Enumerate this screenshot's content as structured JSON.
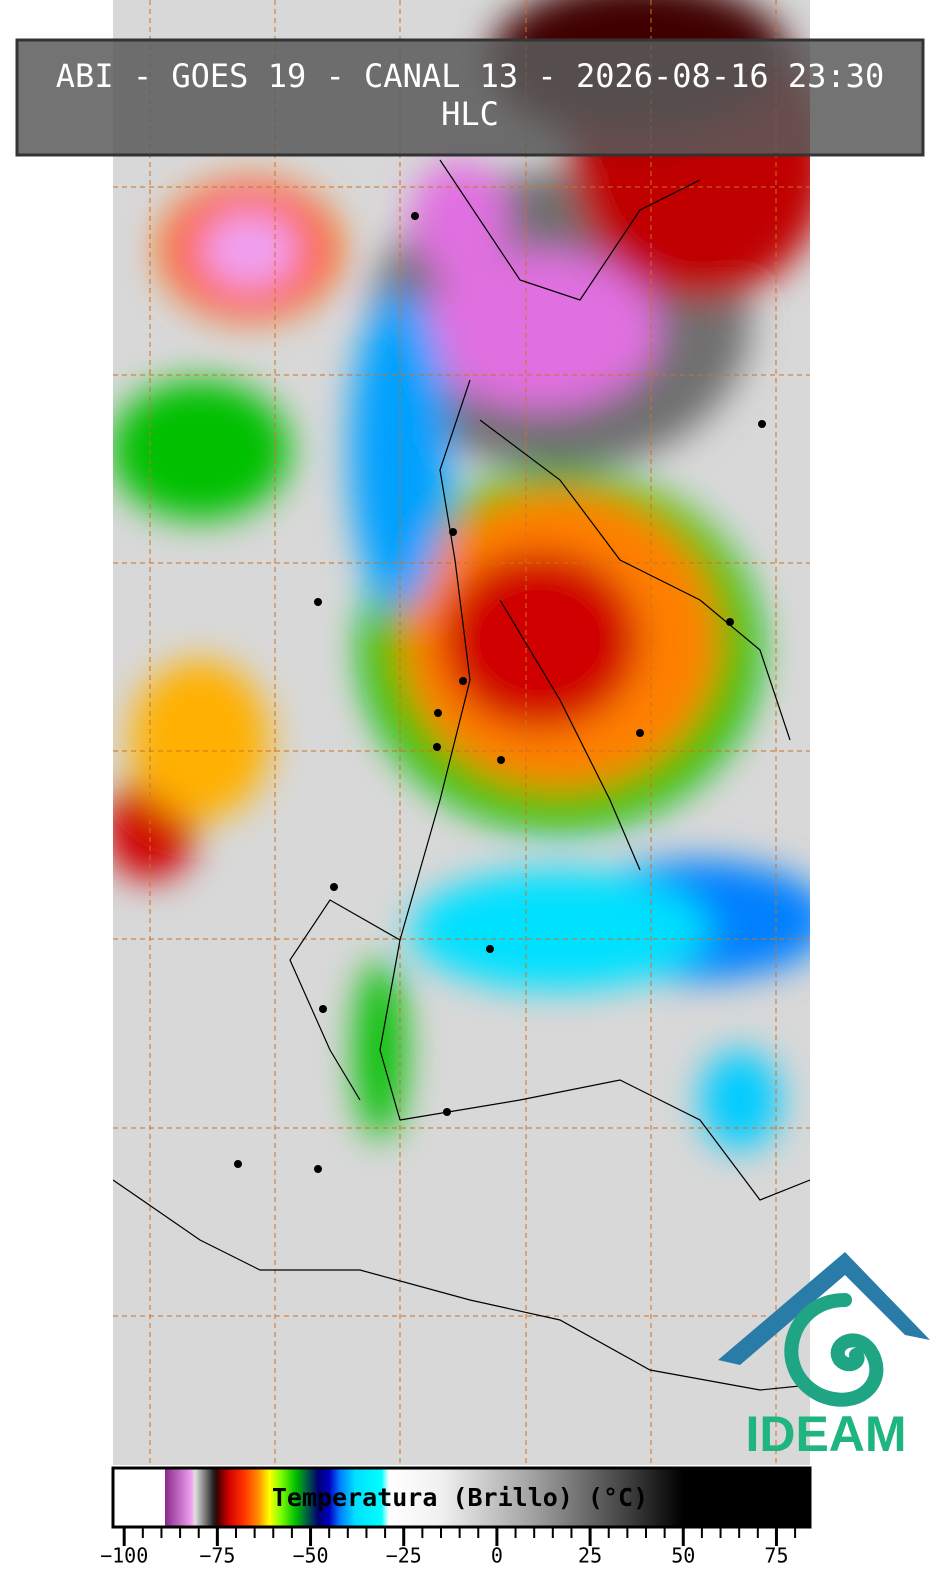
{
  "header": {
    "title": "ABI - GOES 19 - CANAL 13 - 2026-08-16 23:30",
    "subtitle": "HLC"
  },
  "colorbar": {
    "label": "Temperatura (Brillo) (°C)",
    "xlim": [
      -103,
      84
    ],
    "xticks": [
      {
        "value": -100,
        "label": "−100"
      },
      {
        "value": -75,
        "label": "−75"
      },
      {
        "value": -50,
        "label": "−50"
      },
      {
        "value": -25,
        "label": "−25"
      },
      0,
      25,
      50,
      75
    ],
    "minor_ticks": [
      -95,
      -90,
      -85,
      -80,
      -70,
      -65,
      -60,
      -55,
      -45,
      -40,
      -35,
      -30,
      -20,
      -15,
      -10,
      -5,
      5,
      10,
      15,
      20,
      30,
      35,
      40,
      45,
      55,
      60,
      65,
      70,
      80
    ],
    "stops": [
      {
        "value": -103,
        "color": "#ffffff"
      },
      {
        "value": -89,
        "color": "#ffffff"
      },
      {
        "value": -89,
        "color": "#8b2a8b"
      },
      {
        "value": -82,
        "color": "#f0a0f0"
      },
      {
        "value": -81,
        "color": "#e0e0e0"
      },
      {
        "value": -78,
        "color": "#707070"
      },
      {
        "value": -76,
        "color": "#202020"
      },
      {
        "value": -75,
        "color": "#400000"
      },
      {
        "value": -72,
        "color": "#d00000"
      },
      {
        "value": -68,
        "color": "#ff3000"
      },
      {
        "value": -64,
        "color": "#ff9000"
      },
      {
        "value": -61,
        "color": "#ffff00"
      },
      {
        "value": -58,
        "color": "#80ff00"
      },
      {
        "value": -54,
        "color": "#00c000"
      },
      {
        "value": -51,
        "color": "#006040"
      },
      {
        "value": -48,
        "color": "#000070"
      },
      {
        "value": -45,
        "color": "#0000c0"
      },
      {
        "value": -42,
        "color": "#0080ff"
      },
      {
        "value": -38,
        "color": "#00e0ff"
      },
      {
        "value": -31,
        "color": "#00ffff"
      },
      {
        "value": -29,
        "color": "#ffffff"
      },
      {
        "value": -15,
        "color": "#f0f0f0"
      },
      {
        "value": 10,
        "color": "#a0a0a0"
      },
      {
        "value": 35,
        "color": "#404040"
      },
      {
        "value": 50,
        "color": "#000000"
      },
      {
        "value": 84,
        "color": "#000000"
      }
    ]
  },
  "logo": {
    "text": "IDEAM"
  }
}
